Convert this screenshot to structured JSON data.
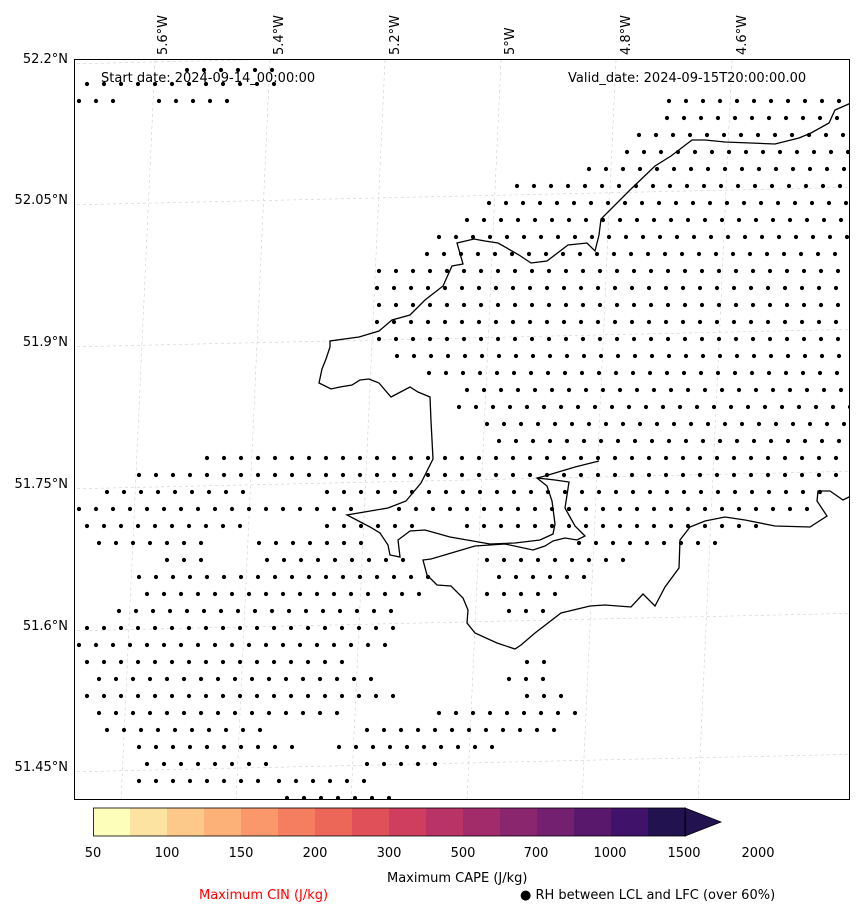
{
  "header": {
    "start_date": "Start date: 2024-09-14_00:00:00",
    "valid_date": "Valid_date: 2024-09-15T20:00:00.00"
  },
  "axes": {
    "lat_labels": [
      "52.2°N",
      "52.05°N",
      "51.9°N",
      "51.75°N",
      "51.6°N",
      "51.45°N"
    ],
    "lon_labels": [
      "5.6°W",
      "5.4°W",
      "5.2°W",
      "5°W",
      "4.8°W",
      "4.6°W"
    ],
    "lat_range": [
      51.42,
      52.2
    ],
    "lon_range": [
      -5.75,
      -4.4
    ]
  },
  "colorbar": {
    "title": "Maximum CAPE (J/kg)",
    "ticks": [
      "50",
      "100",
      "150",
      "200",
      "300",
      "500",
      "700",
      "1000",
      "1500",
      "2000"
    ],
    "colors": [
      "#fefebb",
      "#fde3a2",
      "#fdc98a",
      "#fcb179",
      "#fa986b",
      "#f57e60",
      "#ed6759",
      "#e05059",
      "#cf3e5f",
      "#b93366",
      "#a22c6b",
      "#8a266e",
      "#72206f",
      "#5a186d",
      "#41126a",
      "#221250"
    ],
    "extend": "max"
  },
  "legend": {
    "cin_label": "Maximum CIN (J/kg)",
    "cin_color": "#ff0000",
    "rh_label": "● RH between LCL and LFC (over 60%)"
  },
  "map_style": {
    "gridlines": true,
    "coastline_color": "#000000",
    "dot_color": "#000000"
  }
}
